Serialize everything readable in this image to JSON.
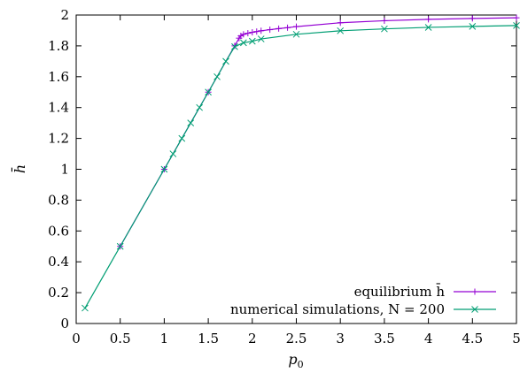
{
  "chart_data": {
    "type": "line",
    "title": "",
    "xlabel": "p0",
    "ylabel": "h̄",
    "xlim": [
      0,
      5
    ],
    "ylim": [
      0,
      2
    ],
    "x_ticks": [
      0,
      0.5,
      1,
      1.5,
      2,
      2.5,
      3,
      3.5,
      4,
      4.5,
      5
    ],
    "x_tick_labels": [
      "0",
      "0.5",
      "1",
      "1.5",
      "2",
      "2.5",
      "3",
      "3.5",
      "4",
      "4.5",
      "5"
    ],
    "y_ticks": [
      0,
      0.2,
      0.4,
      0.6,
      0.8,
      1,
      1.2,
      1.4,
      1.6,
      1.8,
      2
    ],
    "y_tick_labels": [
      "0",
      "0.2",
      "0.4",
      "0.6",
      "0.8",
      "1",
      "1.2",
      "1.4",
      "1.6",
      "1.8",
      "2"
    ],
    "grid": false,
    "legend_position": "bottom-right",
    "series": [
      {
        "name": "equilibrium h̄",
        "color": "#9400d3",
        "marker": "plus",
        "x": [
          0.5,
          1.0,
          1.5,
          1.8,
          1.85,
          1.87,
          1.9,
          1.95,
          2.0,
          2.05,
          2.1,
          2.2,
          2.3,
          2.4,
          2.5,
          3.0,
          3.5,
          4.0,
          4.5,
          5.0
        ],
        "y": [
          0.5,
          1.0,
          1.5,
          1.8,
          1.85,
          1.865,
          1.875,
          1.882,
          1.888,
          1.893,
          1.898,
          1.905,
          1.912,
          1.918,
          1.925,
          1.95,
          1.963,
          1.972,
          1.978,
          1.982
        ]
      },
      {
        "name": "numerical simulations, N = 200",
        "color": "#009e73",
        "marker": "cross",
        "x": [
          0.1,
          0.5,
          1.0,
          1.1,
          1.2,
          1.3,
          1.4,
          1.5,
          1.6,
          1.7,
          1.8,
          1.9,
          2.0,
          2.1,
          2.5,
          3.0,
          3.5,
          4.0,
          4.5,
          5.0
        ],
        "y": [
          0.1,
          0.5,
          1.0,
          1.1,
          1.2,
          1.3,
          1.4,
          1.5,
          1.6,
          1.7,
          1.795,
          1.82,
          1.83,
          1.845,
          1.875,
          1.898,
          1.91,
          1.92,
          1.926,
          1.932
        ]
      }
    ]
  }
}
